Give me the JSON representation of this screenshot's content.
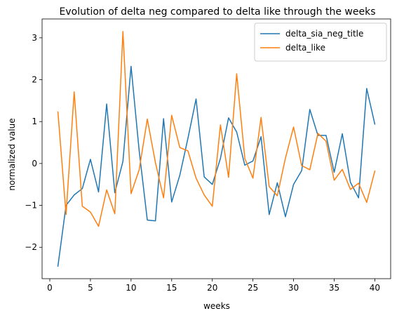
{
  "chart_data": {
    "type": "line",
    "title": "Evolution of delta neg compared to delta like through the weeks",
    "xlabel": "weeks",
    "ylabel": "normalized value",
    "xlim": [
      -0.95,
      41.95
    ],
    "ylim": [
      -2.75,
      3.45
    ],
    "xticks": [
      0,
      5,
      10,
      15,
      20,
      25,
      30,
      35,
      40
    ],
    "yticks": [
      -2,
      -1,
      0,
      1,
      2,
      3
    ],
    "grid": false,
    "legend_position": "top-right",
    "x": [
      1,
      2,
      3,
      4,
      5,
      6,
      7,
      8,
      9,
      10,
      11,
      12,
      13,
      14,
      15,
      16,
      17,
      18,
      19,
      20,
      21,
      22,
      23,
      24,
      25,
      26,
      27,
      28,
      29,
      30,
      31,
      32,
      33,
      34,
      35,
      36,
      37,
      38,
      39,
      40
    ],
    "series": [
      {
        "name": "delta_sia_neg_title",
        "color": "#1f77b4",
        "values": [
          -2.45,
          -1.0,
          -0.75,
          -0.6,
          0.1,
          -0.68,
          1.42,
          -0.7,
          0.05,
          2.32,
          0.3,
          -1.35,
          -1.37,
          1.07,
          -0.92,
          -0.28,
          0.6,
          1.54,
          -0.32,
          -0.5,
          0.12,
          1.09,
          0.75,
          -0.04,
          0.06,
          0.64,
          -1.22,
          -0.46,
          -1.27,
          -0.5,
          -0.17,
          1.29,
          0.67,
          0.67,
          -0.21,
          0.71,
          -0.45,
          -0.82,
          1.79,
          0.94
        ]
      },
      {
        "name": "delta_like",
        "color": "#ff7f0e",
        "values": [
          1.23,
          -1.22,
          1.71,
          -1.02,
          -1.16,
          -1.5,
          -0.63,
          -1.2,
          3.15,
          -0.72,
          -0.15,
          1.06,
          0.02,
          -0.82,
          1.15,
          0.38,
          0.3,
          -0.35,
          -0.75,
          -1.02,
          0.92,
          -0.33,
          2.14,
          0.12,
          -0.35,
          1.1,
          -0.55,
          -0.77,
          0.13,
          0.87,
          -0.05,
          -0.15,
          0.72,
          0.53,
          -0.4,
          -0.14,
          -0.62,
          -0.47,
          -0.93,
          -0.18
        ]
      }
    ]
  }
}
